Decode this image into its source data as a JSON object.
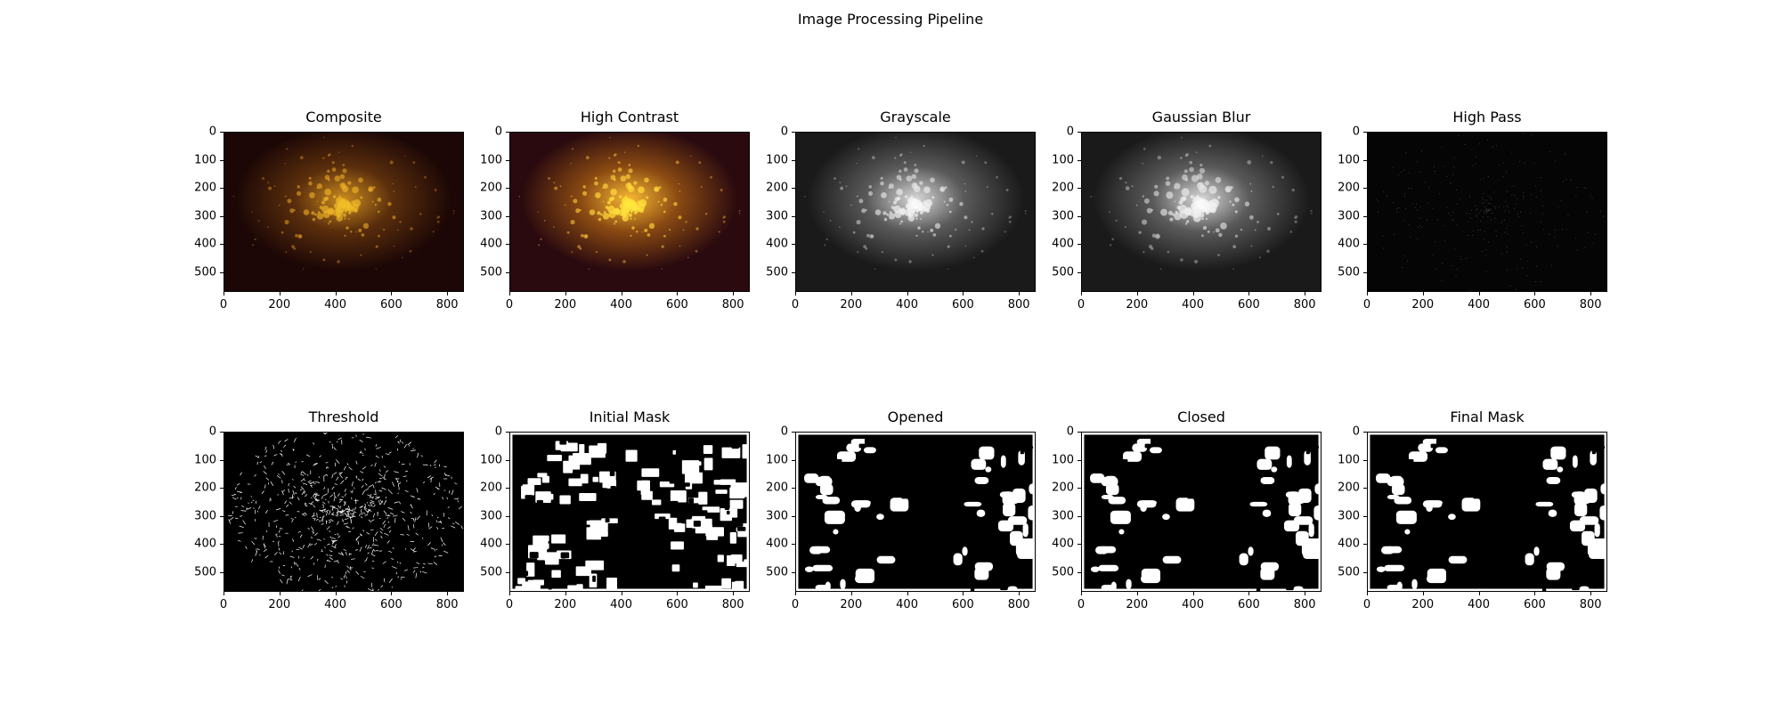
{
  "figure_title": "Image Processing Pipeline",
  "panels": [
    {
      "title": "Composite",
      "style": "composite"
    },
    {
      "title": "High Contrast",
      "style": "contrast"
    },
    {
      "title": "Grayscale",
      "style": "gray"
    },
    {
      "title": "Gaussian Blur",
      "style": "blur"
    },
    {
      "title": "High Pass",
      "style": "highpass"
    },
    {
      "title": "Threshold",
      "style": "threshold"
    },
    {
      "title": "Initial Mask",
      "style": "initialmask"
    },
    {
      "title": "Opened",
      "style": "mask"
    },
    {
      "title": "Closed",
      "style": "mask"
    },
    {
      "title": "Final Mask",
      "style": "mask"
    }
  ],
  "x_ticks": [
    "0",
    "200",
    "400",
    "600",
    "800"
  ],
  "y_ticks": [
    "0",
    "100",
    "200",
    "300",
    "400",
    "500"
  ],
  "x_tick_values": [
    0,
    200,
    400,
    600,
    800
  ],
  "y_tick_values": [
    0,
    100,
    200,
    300,
    400,
    500
  ],
  "image_extent": {
    "width": 860,
    "height": 570
  }
}
